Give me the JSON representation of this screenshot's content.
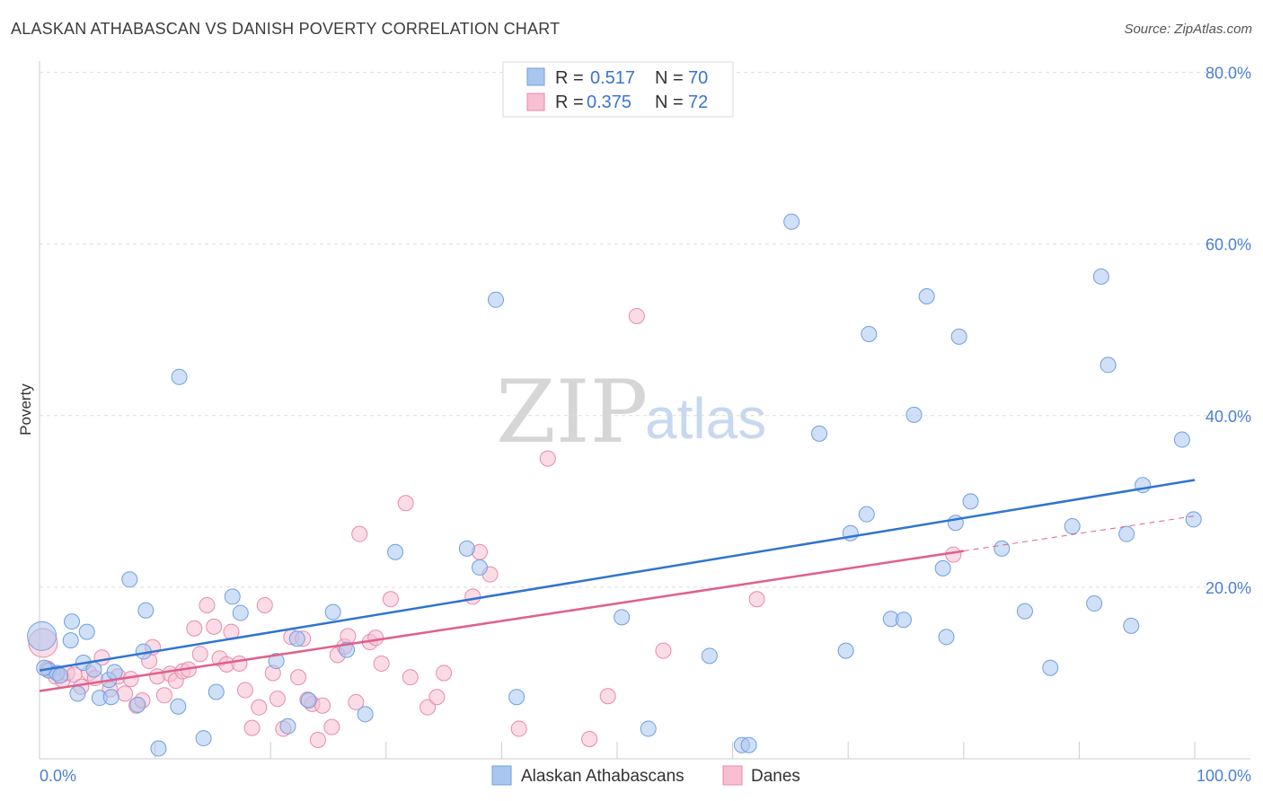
{
  "header": {
    "title": "ALASKAN ATHABASCAN VS DANISH POVERTY CORRELATION CHART",
    "source": "Source: ZipAtlas.com"
  },
  "legend_top": {
    "r_label": "R =",
    "n_label": "N =",
    "series": [
      {
        "r": "0.517",
        "n": "70"
      },
      {
        "r": "0.375",
        "n": "72"
      }
    ]
  },
  "watermark": {
    "zip": "ZIP",
    "atlas": "atlas"
  },
  "colors": {
    "blue_fill": "#a9c6f0",
    "blue_stroke": "#6f9fe0",
    "blue_line": "#2f74d0",
    "pink_fill": "#f7bfd1",
    "pink_stroke": "#e88aa9",
    "pink_line": "#e0608a"
  },
  "chart_data": {
    "type": "scatter",
    "title": "ALASKAN ATHABASCAN VS DANISH POVERTY CORRELATION CHART",
    "xlabel": "",
    "ylabel": "Poverty",
    "xlim": [
      0,
      100
    ],
    "ylim": [
      0,
      80
    ],
    "x_ticks": [
      "0.0%",
      "100.0%"
    ],
    "y_ticks": [
      "20.0%",
      "40.0%",
      "60.0%",
      "80.0%"
    ],
    "grid": "horizontal dashed",
    "legend_position": "top-center",
    "series": [
      {
        "name": "Alaskan Athabascans",
        "r": 0.517,
        "n": 70,
        "trend": {
          "x0": 0,
          "y0": 10.3,
          "x1": 100,
          "y1": 32.5
        },
        "points": [
          [
            0.2,
            14.3
          ],
          [
            0.8,
            10.3
          ],
          [
            1.5,
            10.0
          ],
          [
            1.8,
            9.7
          ],
          [
            2.7,
            13.8
          ],
          [
            2.8,
            16.0
          ],
          [
            3.3,
            7.6
          ],
          [
            3.8,
            11.2
          ],
          [
            4.1,
            14.8
          ],
          [
            4.7,
            10.4
          ],
          [
            5.2,
            7.1
          ],
          [
            6.0,
            9.2
          ],
          [
            6.2,
            7.2
          ],
          [
            6.5,
            10.1
          ],
          [
            7.8,
            20.9
          ],
          [
            8.5,
            6.3
          ],
          [
            9.0,
            12.5
          ],
          [
            9.2,
            17.3
          ],
          [
            10.3,
            1.2
          ],
          [
            12.0,
            6.1
          ],
          [
            12.1,
            44.5
          ],
          [
            14.2,
            2.4
          ],
          [
            15.3,
            7.8
          ],
          [
            16.7,
            18.9
          ],
          [
            17.4,
            17.0
          ],
          [
            20.5,
            11.4
          ],
          [
            21.5,
            3.8
          ],
          [
            22.3,
            14.0
          ],
          [
            23.3,
            6.8
          ],
          [
            25.4,
            17.1
          ],
          [
            26.6,
            12.7
          ],
          [
            28.2,
            5.2
          ],
          [
            30.8,
            24.1
          ],
          [
            37.0,
            24.5
          ],
          [
            38.1,
            22.3
          ],
          [
            39.5,
            53.5
          ],
          [
            41.3,
            7.2
          ],
          [
            50.4,
            16.5
          ],
          [
            52.7,
            3.5
          ],
          [
            58.0,
            12.0
          ],
          [
            60.8,
            1.6
          ],
          [
            61.4,
            1.6
          ],
          [
            65.1,
            62.6
          ],
          [
            67.5,
            37.9
          ],
          [
            69.8,
            12.6
          ],
          [
            70.2,
            26.3
          ],
          [
            71.6,
            28.5
          ],
          [
            71.8,
            49.5
          ],
          [
            73.7,
            16.3
          ],
          [
            74.8,
            16.2
          ],
          [
            75.7,
            40.1
          ],
          [
            76.8,
            53.9
          ],
          [
            78.2,
            22.2
          ],
          [
            78.5,
            14.2
          ],
          [
            79.3,
            27.5
          ],
          [
            79.6,
            49.2
          ],
          [
            80.6,
            30.0
          ],
          [
            83.3,
            24.5
          ],
          [
            85.3,
            17.2
          ],
          [
            87.5,
            10.6
          ],
          [
            89.4,
            27.1
          ],
          [
            91.3,
            18.1
          ],
          [
            91.9,
            56.2
          ],
          [
            92.5,
            45.9
          ],
          [
            94.1,
            26.2
          ],
          [
            94.5,
            15.5
          ],
          [
            95.5,
            31.9
          ],
          [
            98.9,
            37.2
          ],
          [
            99.9,
            27.9
          ],
          [
            0.4,
            10.6
          ]
        ]
      },
      {
        "name": "Danes",
        "r": 0.375,
        "n": 72,
        "trend": {
          "x0": 0,
          "y0": 7.9,
          "x1": 100,
          "y1": 28.3
        },
        "points": [
          [
            0.3,
            13.5
          ],
          [
            0.7,
            10.5
          ],
          [
            1.4,
            9.6
          ],
          [
            2.0,
            9.2
          ],
          [
            2.4,
            10.0
          ],
          [
            3.0,
            9.8
          ],
          [
            3.6,
            8.4
          ],
          [
            4.3,
            10.0
          ],
          [
            4.8,
            9.4
          ],
          [
            5.4,
            11.8
          ],
          [
            6.1,
            8.1
          ],
          [
            6.8,
            9.6
          ],
          [
            7.4,
            7.6
          ],
          [
            7.9,
            9.3
          ],
          [
            8.4,
            6.2
          ],
          [
            8.9,
            6.8
          ],
          [
            9.5,
            11.4
          ],
          [
            9.8,
            13.0
          ],
          [
            10.2,
            9.6
          ],
          [
            10.8,
            7.4
          ],
          [
            11.3,
            9.9
          ],
          [
            11.8,
            9.1
          ],
          [
            12.4,
            10.2
          ],
          [
            12.9,
            10.4
          ],
          [
            13.4,
            15.2
          ],
          [
            13.9,
            12.2
          ],
          [
            14.5,
            17.9
          ],
          [
            15.1,
            15.4
          ],
          [
            15.6,
            11.7
          ],
          [
            16.2,
            11.0
          ],
          [
            16.6,
            14.8
          ],
          [
            17.3,
            11.1
          ],
          [
            17.8,
            8.0
          ],
          [
            18.4,
            3.6
          ],
          [
            19.0,
            6.0
          ],
          [
            19.5,
            17.9
          ],
          [
            20.2,
            10.0
          ],
          [
            20.6,
            7.0
          ],
          [
            21.1,
            3.5
          ],
          [
            21.8,
            14.2
          ],
          [
            22.4,
            9.5
          ],
          [
            22.8,
            14.0
          ],
          [
            23.6,
            6.4
          ],
          [
            24.1,
            2.2
          ],
          [
            24.5,
            6.2
          ],
          [
            25.3,
            3.7
          ],
          [
            25.8,
            12.1
          ],
          [
            26.4,
            13.1
          ],
          [
            26.7,
            14.3
          ],
          [
            27.4,
            6.6
          ],
          [
            27.7,
            26.2
          ],
          [
            28.6,
            13.6
          ],
          [
            29.1,
            14.1
          ],
          [
            29.6,
            11.1
          ],
          [
            30.4,
            18.6
          ],
          [
            31.7,
            29.8
          ],
          [
            32.1,
            9.5
          ],
          [
            33.6,
            6.0
          ],
          [
            34.4,
            7.2
          ],
          [
            37.5,
            18.9
          ],
          [
            38.1,
            24.1
          ],
          [
            39.0,
            21.5
          ],
          [
            41.5,
            3.5
          ],
          [
            44.0,
            35.0
          ],
          [
            47.6,
            2.3
          ],
          [
            49.2,
            7.3
          ],
          [
            51.7,
            51.6
          ],
          [
            54.0,
            12.6
          ],
          [
            62.1,
            18.6
          ],
          [
            79.1,
            23.8
          ],
          [
            23.2,
            6.9
          ],
          [
            35.0,
            10.0
          ]
        ]
      }
    ]
  },
  "bottom_legend": [
    {
      "label": "Alaskan Athabascans"
    },
    {
      "label": "Danes"
    }
  ]
}
